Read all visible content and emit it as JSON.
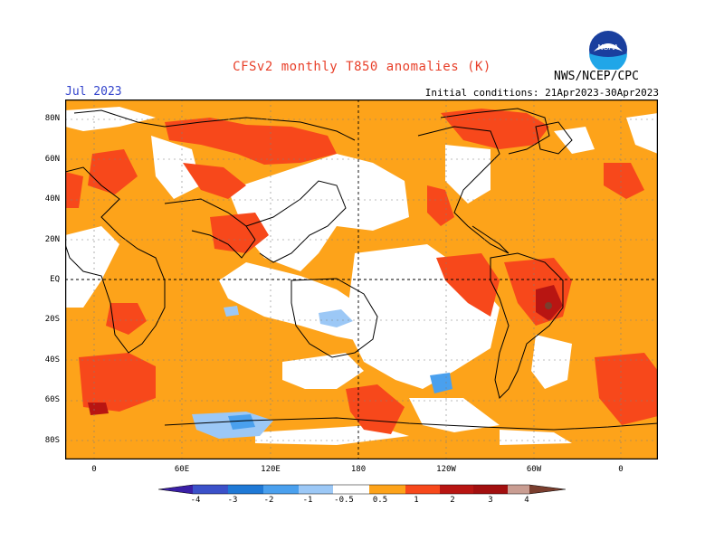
{
  "header": {
    "title": "CFSv2 monthly T850 anomalies (K)",
    "month": "Jul 2023",
    "initial_conditions": "Initial conditions: 21Apr2023-30Apr2023",
    "agency": "NWS/NCEP/CPC",
    "logo_text": "NOAA"
  },
  "axes": {
    "lat_labels": [
      "80N",
      "60N",
      "40N",
      "20N",
      "EQ",
      "20S",
      "40S",
      "60S",
      "80S"
    ],
    "lon_labels": [
      "0",
      "60E",
      "120E",
      "180",
      "120W",
      "60W",
      "0"
    ]
  },
  "colorbar": {
    "labels": [
      "-4",
      "-3",
      "-2",
      "-1",
      "-0.5",
      "0.5",
      "1",
      "2",
      "3",
      "4"
    ],
    "colors": [
      "#3a1fa6",
      "#3b51c9",
      "#1f79d6",
      "#4aa0ee",
      "#9cc8f6",
      "#ffffff",
      "#fda31a",
      "#f7481b",
      "#b81512",
      "#a20f0f",
      "#c99d92",
      "#7a3e2e"
    ]
  }
}
